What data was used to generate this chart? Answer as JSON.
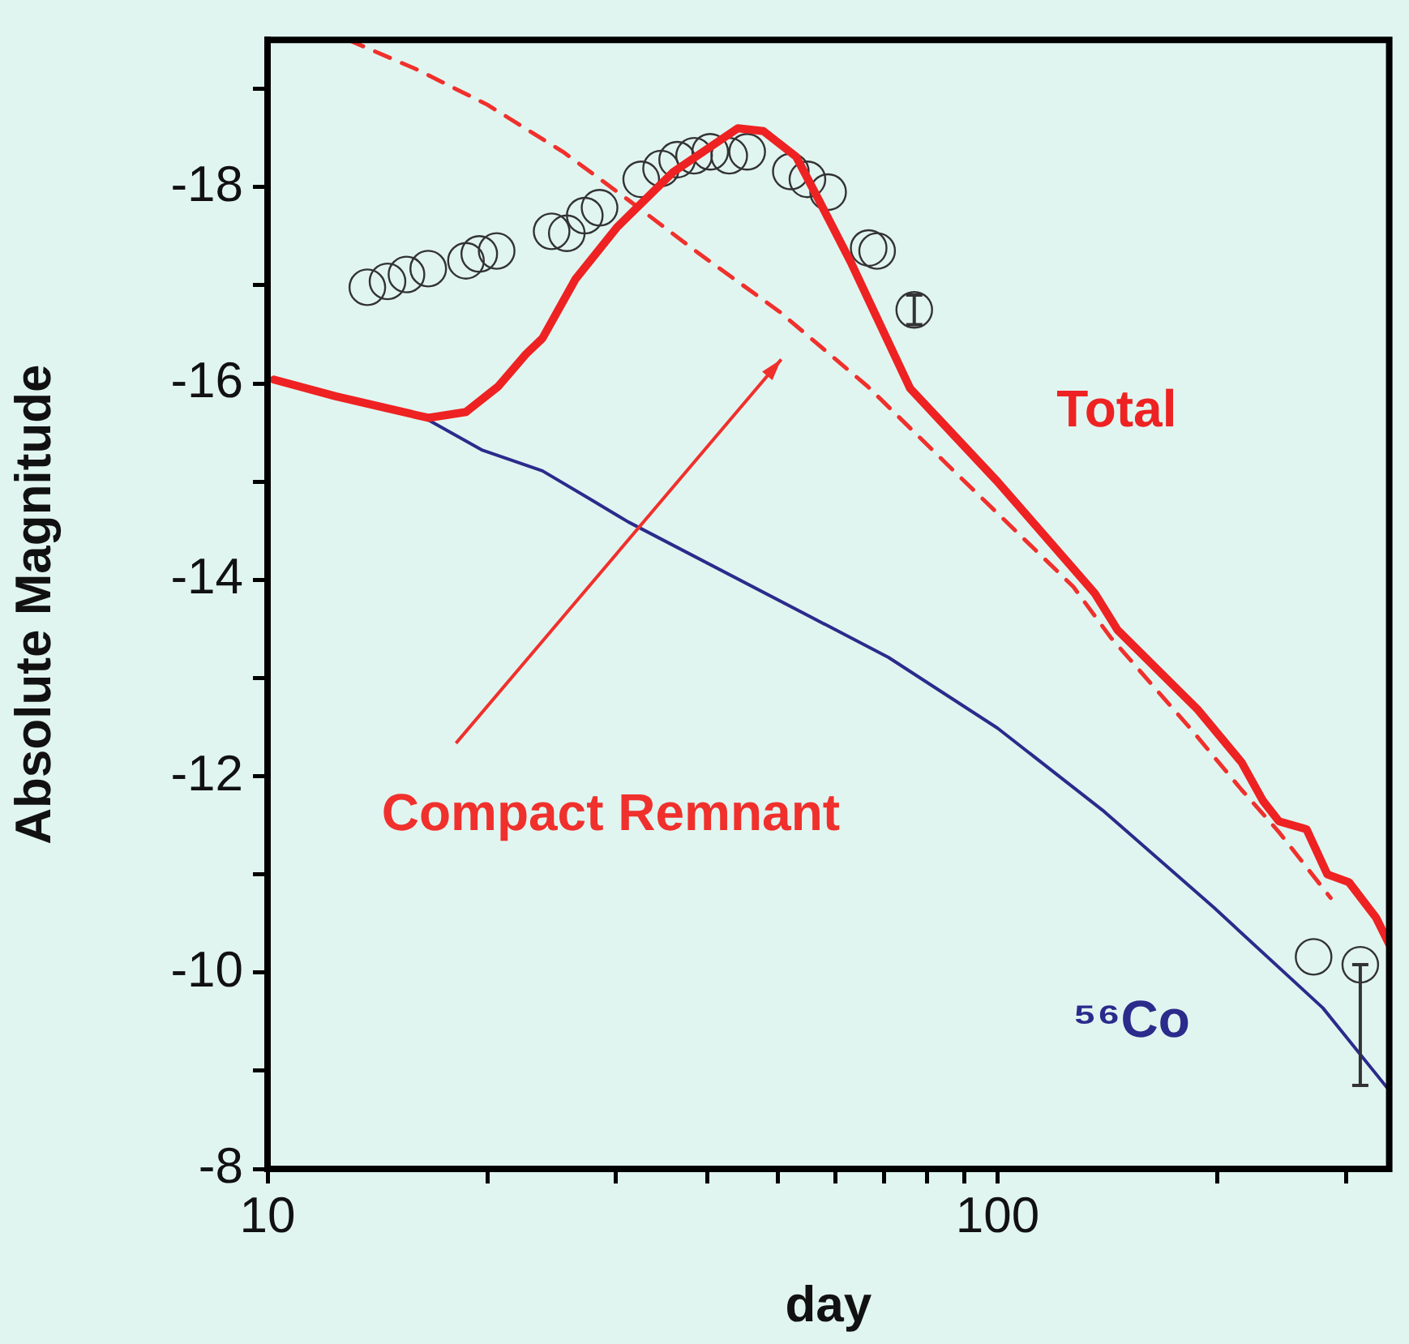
{
  "chart_data": {
    "type": "line",
    "xlabel": "day",
    "ylabel": "Absolute Magnitude",
    "log": "x",
    "grid": false,
    "legend": false,
    "xlim": [
      10,
      344
    ],
    "xticks": [
      10,
      {
        "value": 20,
        "label": null
      },
      {
        "value": 30,
        "label": null
      },
      {
        "value": 40,
        "label": null
      },
      {
        "value": 50,
        "label": null
      },
      {
        "value": 60,
        "label": null
      },
      {
        "value": 70,
        "label": null
      },
      {
        "value": 80,
        "label": null
      },
      {
        "value": 90,
        "label": null
      },
      100,
      {
        "value": 200,
        "label": null
      },
      {
        "value": 300,
        "label": null
      }
    ],
    "ylim": [
      -8,
      -19.5
    ],
    "yticks": [
      -8,
      {
        "value": -9,
        "label": null
      },
      -10,
      {
        "value": -11,
        "label": null
      },
      -12,
      {
        "value": -13,
        "label": null
      },
      -14,
      {
        "value": -15,
        "label": null
      },
      -16,
      {
        "value": -17,
        "label": null
      },
      -18,
      {
        "value": -19,
        "label": null
      }
    ],
    "series": [
      {
        "name": "Total",
        "color": "#ee2222",
        "line_style": "solid",
        "marker": "none",
        "x": [
          10.2,
          12.4,
          16.6,
          18.7,
          20.7,
          22.6,
          23.8,
          26.4,
          30.1,
          35.9,
          44.1,
          47.8,
          53.0,
          56.9,
          63.1,
          75.9,
          82.8,
          100,
          136,
          146,
          188,
          216,
          231,
          243,
          265,
          283,
          303,
          330,
          344
        ],
        "values": [
          -16.04,
          -15.87,
          -15.65,
          -15.71,
          -15.97,
          -16.3,
          -16.46,
          -17.06,
          -17.59,
          -18.15,
          -18.6,
          -18.57,
          -18.31,
          -17.87,
          -17.22,
          -15.95,
          -15.65,
          -15.0,
          -13.86,
          -13.49,
          -12.68,
          -12.14,
          -11.75,
          -11.54,
          -11.46,
          -11.0,
          -10.92,
          -10.56,
          -10.29
        ]
      },
      {
        "name": "Compact Remnant",
        "color": "#f0302c",
        "line_style": "dashed",
        "marker": "none",
        "x": [
          12.9,
          16.0,
          20.0,
          25.4,
          31.2,
          38.9,
          50.3,
          66.4,
          87.1,
          127,
          143,
          185,
          216,
          243,
          286
        ],
        "values": [
          -19.5,
          -19.2,
          -18.84,
          -18.36,
          -17.87,
          -17.33,
          -16.73,
          -15.97,
          -15.11,
          -13.93,
          -13.41,
          -12.46,
          -11.86,
          -11.43,
          -10.76
        ]
      },
      {
        "name": "⁵⁶Co",
        "color": "#2b2b8c",
        "line_style": "solid",
        "marker": "none",
        "x": [
          16.6,
          19.7,
          23.8,
          27.7,
          31.2,
          70.9,
          100,
          140,
          198,
          279,
          344
        ],
        "values": [
          -15.63,
          -15.32,
          -15.11,
          -14.82,
          -14.59,
          -13.21,
          -12.49,
          -11.64,
          -10.66,
          -9.64,
          -8.8
        ]
      },
      {
        "type": "scatter",
        "color": "#333333",
        "marker": "circle",
        "x": [
          13.7,
          14.6,
          15.5,
          16.6,
          18.7,
          19.5,
          20.6,
          24.5,
          25.7,
          27.2,
          28.5,
          32.5,
          34.6,
          36.4,
          38.4,
          40.4,
          42.9,
          45.4,
          52.1,
          54.9,
          58.6,
          66.6,
          68.4,
          76.9,
          271,
          314
        ],
        "values": [
          -16.98,
          -17.04,
          -17.11,
          -17.17,
          -17.25,
          -17.32,
          -17.35,
          -17.55,
          -17.53,
          -17.71,
          -17.79,
          -18.08,
          -18.19,
          -18.28,
          -18.32,
          -18.36,
          -18.32,
          -18.36,
          -18.16,
          -18.08,
          -17.95,
          -17.38,
          -17.35,
          -16.75,
          -10.16,
          -10.08
        ],
        "errors": [
          null,
          null,
          null,
          null,
          null,
          null,
          null,
          null,
          null,
          null,
          null,
          null,
          null,
          null,
          null,
          null,
          null,
          null,
          null,
          null,
          null,
          null,
          null,
          0.15,
          null,
          [
            -10.08,
            -8.85
          ]
        ]
      }
    ]
  }
}
